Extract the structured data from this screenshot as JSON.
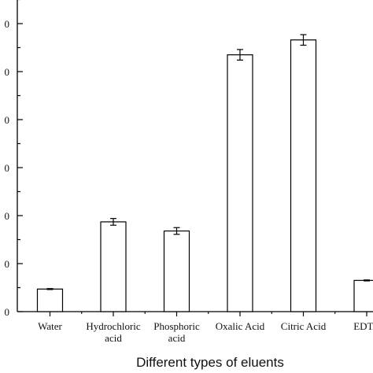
{
  "chart_data": {
    "type": "bar",
    "xlabel": "Different types of eluents",
    "ylabel": "",
    "categories": [
      [
        "Water"
      ],
      [
        "Hydrochloric",
        "acid"
      ],
      [
        "Phosphoric",
        "acid"
      ],
      [
        "Oxalic Acid"
      ],
      [
        "Citric Acid"
      ],
      [
        "EDTA"
      ]
    ],
    "values": [
      0.47,
      1.87,
      1.68,
      5.35,
      5.66,
      0.65
    ],
    "errors": [
      0.01,
      0.07,
      0.07,
      0.11,
      0.11,
      0.01
    ],
    "ylim": [
      0,
      6.5
    ],
    "yticks": [
      0,
      1,
      2,
      3,
      4,
      5,
      6
    ],
    "ytick_labels": [
      "0",
      "0",
      "0",
      "0",
      "0",
      "0",
      "0"
    ],
    "bar_fill": "#ffffff",
    "bar_stroke": "#000000",
    "grid": false
  }
}
